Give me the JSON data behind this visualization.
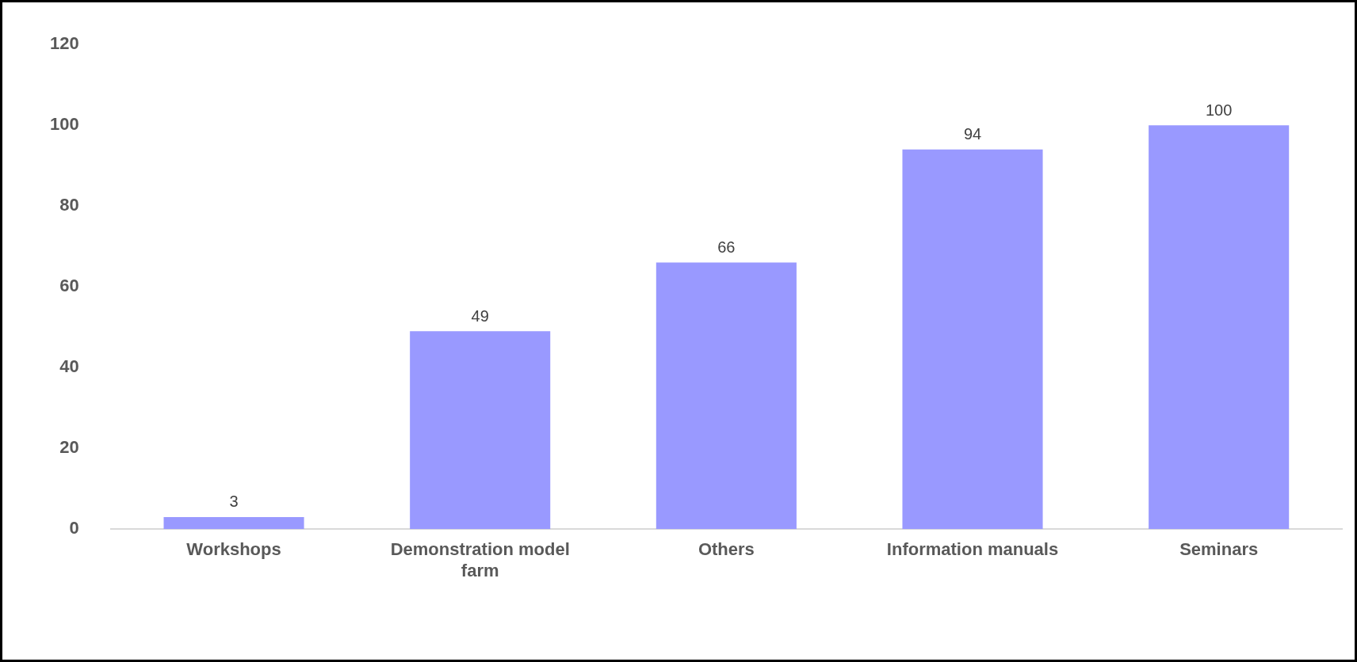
{
  "chart_data": {
    "type": "bar",
    "categories": [
      "Workshops",
      "Demonstration model farm",
      "Others",
      "Information manuals",
      "Seminars"
    ],
    "values": [
      3,
      49,
      66,
      94,
      100
    ],
    "color": "#9999ff",
    "ylim": [
      0,
      120
    ],
    "yticks": [
      0,
      20,
      40,
      60,
      80,
      100,
      120
    ],
    "grid": false,
    "legend": false,
    "data_labels": true
  }
}
